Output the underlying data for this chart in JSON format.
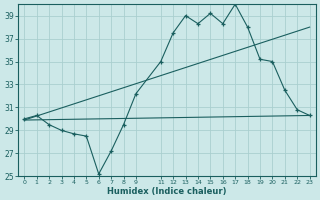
{
  "xlabel": "Humidex (Indice chaleur)",
  "bg_color": "#cce8e8",
  "grid_color": "#aacfcf",
  "line_color": "#1a5f5f",
  "x_ticks": [
    0,
    1,
    2,
    3,
    4,
    5,
    6,
    7,
    8,
    9,
    11,
    12,
    13,
    14,
    15,
    16,
    17,
    18,
    19,
    20,
    21,
    22,
    23
  ],
  "xlim": [
    -0.5,
    23.5
  ],
  "ylim": [
    25,
    40
  ],
  "yticks": [
    25,
    27,
    29,
    31,
    33,
    35,
    37,
    39
  ],
  "line1_x": [
    0,
    1,
    2,
    3,
    4,
    5,
    6,
    7,
    8,
    9,
    11,
    12,
    13,
    14,
    15,
    16,
    17,
    18,
    19,
    20,
    21,
    22,
    23
  ],
  "line1_y": [
    30.0,
    30.3,
    29.5,
    29.0,
    28.7,
    28.5,
    25.2,
    27.2,
    29.5,
    32.2,
    35.0,
    37.5,
    39.0,
    38.3,
    39.2,
    38.3,
    40.0,
    38.0,
    35.2,
    35.0,
    32.5,
    30.8,
    30.3
  ],
  "line2_x": [
    0,
    23
  ],
  "line2_y": [
    29.9,
    30.3
  ],
  "line3_x": [
    0,
    23
  ],
  "line3_y": [
    29.9,
    38.0
  ]
}
